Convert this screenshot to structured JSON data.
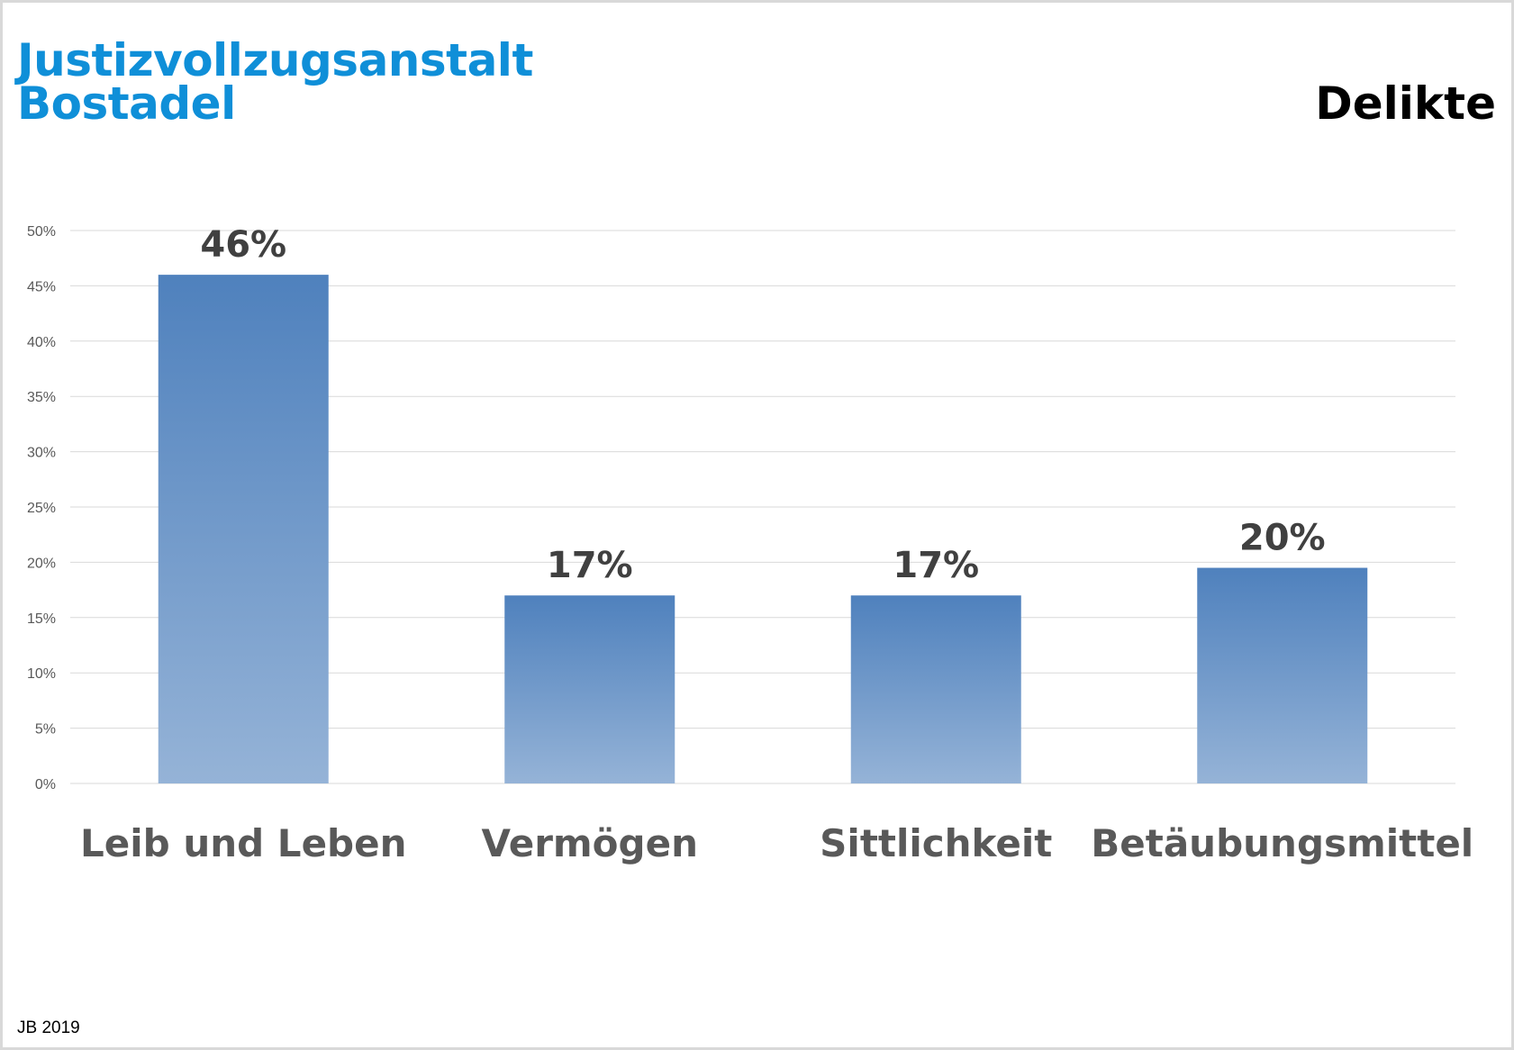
{
  "header": {
    "org_line1": "Justizvollzugsanstalt",
    "org_line2": "Bostadel",
    "title": "Delikte"
  },
  "footer": {
    "note": "JB 2019"
  },
  "colors": {
    "org_title": "#0f8fd8",
    "bar_top": "#4f81bd",
    "bar_bottom": "#95b3d7",
    "gridline": "#d9d9d9"
  },
  "chart_data": {
    "type": "bar",
    "title": "Delikte",
    "categories": [
      "Leib und Leben",
      "Vermögen",
      "Sittlichkeit",
      "Betäubungsmittel"
    ],
    "values": [
      46,
      17,
      17,
      19.5
    ],
    "data_labels": [
      "46%",
      "17%",
      "17%",
      "20%"
    ],
    "ylim": [
      0,
      50
    ],
    "y_ticks": [
      0,
      5,
      10,
      15,
      20,
      25,
      30,
      35,
      40,
      45,
      50
    ],
    "y_tick_labels": [
      "0%",
      "5%",
      "10%",
      "15%",
      "20%",
      "25%",
      "30%",
      "35%",
      "40%",
      "45%",
      "50%"
    ],
    "grid": true,
    "legend": "none"
  }
}
